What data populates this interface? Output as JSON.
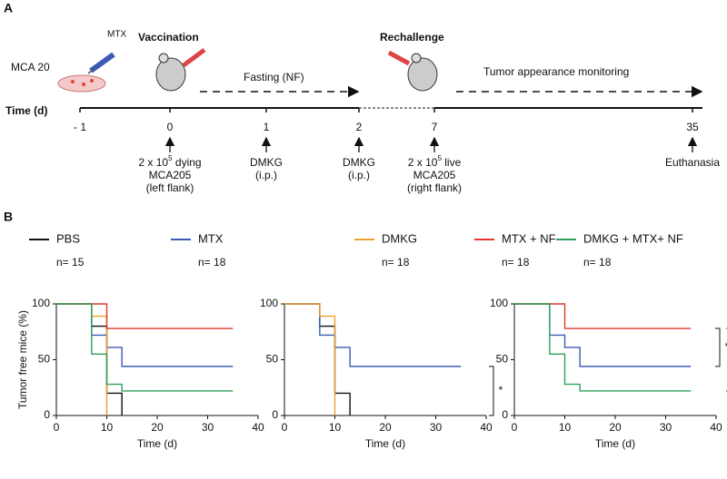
{
  "panel_a": {
    "letter": "A",
    "sample_label": "MCA 20",
    "drug_label": "MTX",
    "vaccination": "Vaccination",
    "fasting": "Fasting (NF)",
    "rechallenge": "Rechallenge",
    "monitoring": "Tumor appearance monitoring",
    "timeline": {
      "label": "Time (d)",
      "ticks": [
        "- 1",
        "0",
        "1",
        "2",
        "7",
        "35"
      ]
    },
    "notes": [
      {
        "tick": 1,
        "pre": "2 x 10",
        "sup": "5",
        "post": " dying",
        "lines": [
          "MCA205",
          "(left flank)"
        ]
      },
      {
        "tick": 2,
        "lines": [
          "DMKG",
          "(i.p.)"
        ]
      },
      {
        "tick": 3,
        "lines": [
          "DMKG",
          "(i.p.)"
        ]
      },
      {
        "tick": 4,
        "pre": "2 x 10",
        "sup": "5",
        "post": " live",
        "lines": [
          "MCA205",
          "(right flank)"
        ]
      },
      {
        "tick": 5,
        "lines": [
          "Euthanasia"
        ]
      }
    ]
  },
  "panel_b": {
    "letter": "B"
  },
  "chart_data": [
    {
      "type": "step",
      "ylabel": "Tumor free mice (%)",
      "xlabel": "Time (d)",
      "xlim": [
        0,
        40
      ],
      "xticks": [
        0,
        10,
        20,
        30,
        40
      ],
      "ylim": [
        0,
        100
      ],
      "yticks": [
        0,
        50,
        100
      ],
      "series": [
        {
          "name": "PBS",
          "n": "n= 15",
          "color": "#111111",
          "x": [
            0,
            7,
            10,
            13
          ],
          "values": [
            100,
            80,
            20,
            0
          ]
        },
        {
          "name": "MTX",
          "n": "n= 18",
          "color": "#3b5bb5",
          "x": [
            0,
            7,
            10,
            13,
            35
          ],
          "values": [
            100,
            72,
            61,
            44,
            44
          ]
        },
        {
          "name": "DMKG",
          "n": "n= 18",
          "color": "#f0a030",
          "x": [
            0,
            7,
            10
          ],
          "values": [
            100,
            89,
            0
          ]
        },
        {
          "name": "MTX + NF",
          "n": "n= 18",
          "color": "#e0382c",
          "x": [
            0,
            10,
            35
          ],
          "values": [
            100,
            78,
            78
          ]
        },
        {
          "name": "DMKG + MTX+ NF",
          "n": "n= 18",
          "color": "#2ea05a",
          "x": [
            0,
            7,
            10,
            13,
            35
          ],
          "values": [
            100,
            55,
            28,
            22,
            22
          ]
        }
      ]
    },
    {
      "type": "step",
      "xlabel": "Time (d)",
      "xlim": [
        0,
        40
      ],
      "xticks": [
        0,
        10,
        20,
        30,
        40
      ],
      "ylim": [
        0,
        100
      ],
      "yticks": [
        0,
        50,
        100
      ],
      "annotations": [
        "*"
      ],
      "series": [
        {
          "color": "#111111",
          "x": [
            0,
            7,
            10,
            13
          ],
          "values": [
            100,
            80,
            20,
            0
          ]
        },
        {
          "color": "#3b5bb5",
          "x": [
            0,
            7,
            10,
            13,
            35
          ],
          "values": [
            100,
            72,
            61,
            44,
            44
          ]
        },
        {
          "color": "#f0a030",
          "x": [
            0,
            7,
            10
          ],
          "values": [
            100,
            89,
            0
          ]
        }
      ]
    },
    {
      "type": "step",
      "xlabel": "Time (d)",
      "xlim": [
        0,
        40
      ],
      "xticks": [
        0,
        10,
        20,
        30,
        40
      ],
      "ylim": [
        0,
        100
      ],
      "yticks": [
        0,
        50,
        100
      ],
      "annotations": [
        "*",
        "***"
      ],
      "series": [
        {
          "color": "#3b5bb5",
          "x": [
            0,
            7,
            10,
            13,
            35
          ],
          "values": [
            100,
            72,
            61,
            44,
            44
          ]
        },
        {
          "color": "#e0382c",
          "x": [
            0,
            10,
            35
          ],
          "values": [
            100,
            78,
            78
          ]
        },
        {
          "color": "#2ea05a",
          "x": [
            0,
            7,
            10,
            13,
            35
          ],
          "values": [
            100,
            55,
            28,
            22,
            22
          ]
        }
      ]
    }
  ]
}
